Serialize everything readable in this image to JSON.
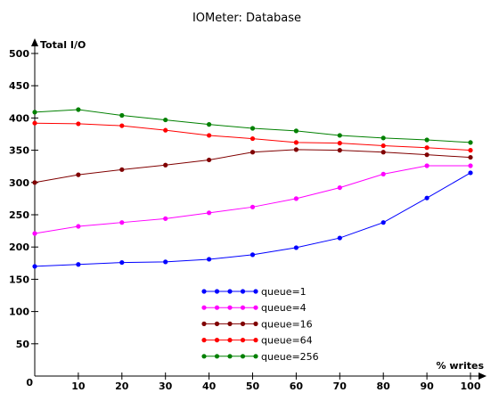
{
  "chart_data": {
    "type": "line",
    "title": "IOMeter: Database",
    "ylabel": "Total I/O",
    "xlabel": "% writes",
    "x": [
      0,
      10,
      20,
      30,
      40,
      50,
      60,
      70,
      80,
      90,
      100
    ],
    "xlim": [
      0,
      100
    ],
    "ylim": [
      0,
      500
    ],
    "x_ticks": [
      "0",
      "10",
      "20",
      "30",
      "40",
      "50",
      "60",
      "70",
      "80",
      "90",
      "100"
    ],
    "y_ticks": [
      "0",
      "50",
      "100",
      "150",
      "200",
      "250",
      "300",
      "350",
      "400",
      "450",
      "500"
    ],
    "grid": false,
    "legend_position": "bottom-center",
    "series": [
      {
        "name": "queue=1",
        "color": "#0000ff",
        "values": [
          170,
          173,
          176,
          177,
          181,
          188,
          199,
          214,
          238,
          276,
          315
        ]
      },
      {
        "name": "queue=4",
        "color": "#ff00ff",
        "values": [
          221,
          232,
          238,
          244,
          253,
          262,
          275,
          292,
          313,
          326,
          326
        ]
      },
      {
        "name": "queue=16",
        "color": "#800000",
        "values": [
          300,
          312,
          320,
          327,
          335,
          347,
          351,
          350,
          347,
          343,
          339
        ]
      },
      {
        "name": "queue=64",
        "color": "#ff0000",
        "values": [
          392,
          391,
          388,
          381,
          373,
          368,
          362,
          361,
          357,
          354,
          350
        ]
      },
      {
        "name": "queue=256",
        "color": "#008000",
        "values": [
          409,
          413,
          404,
          397,
          390,
          384,
          380,
          373,
          369,
          366,
          362
        ]
      }
    ]
  }
}
